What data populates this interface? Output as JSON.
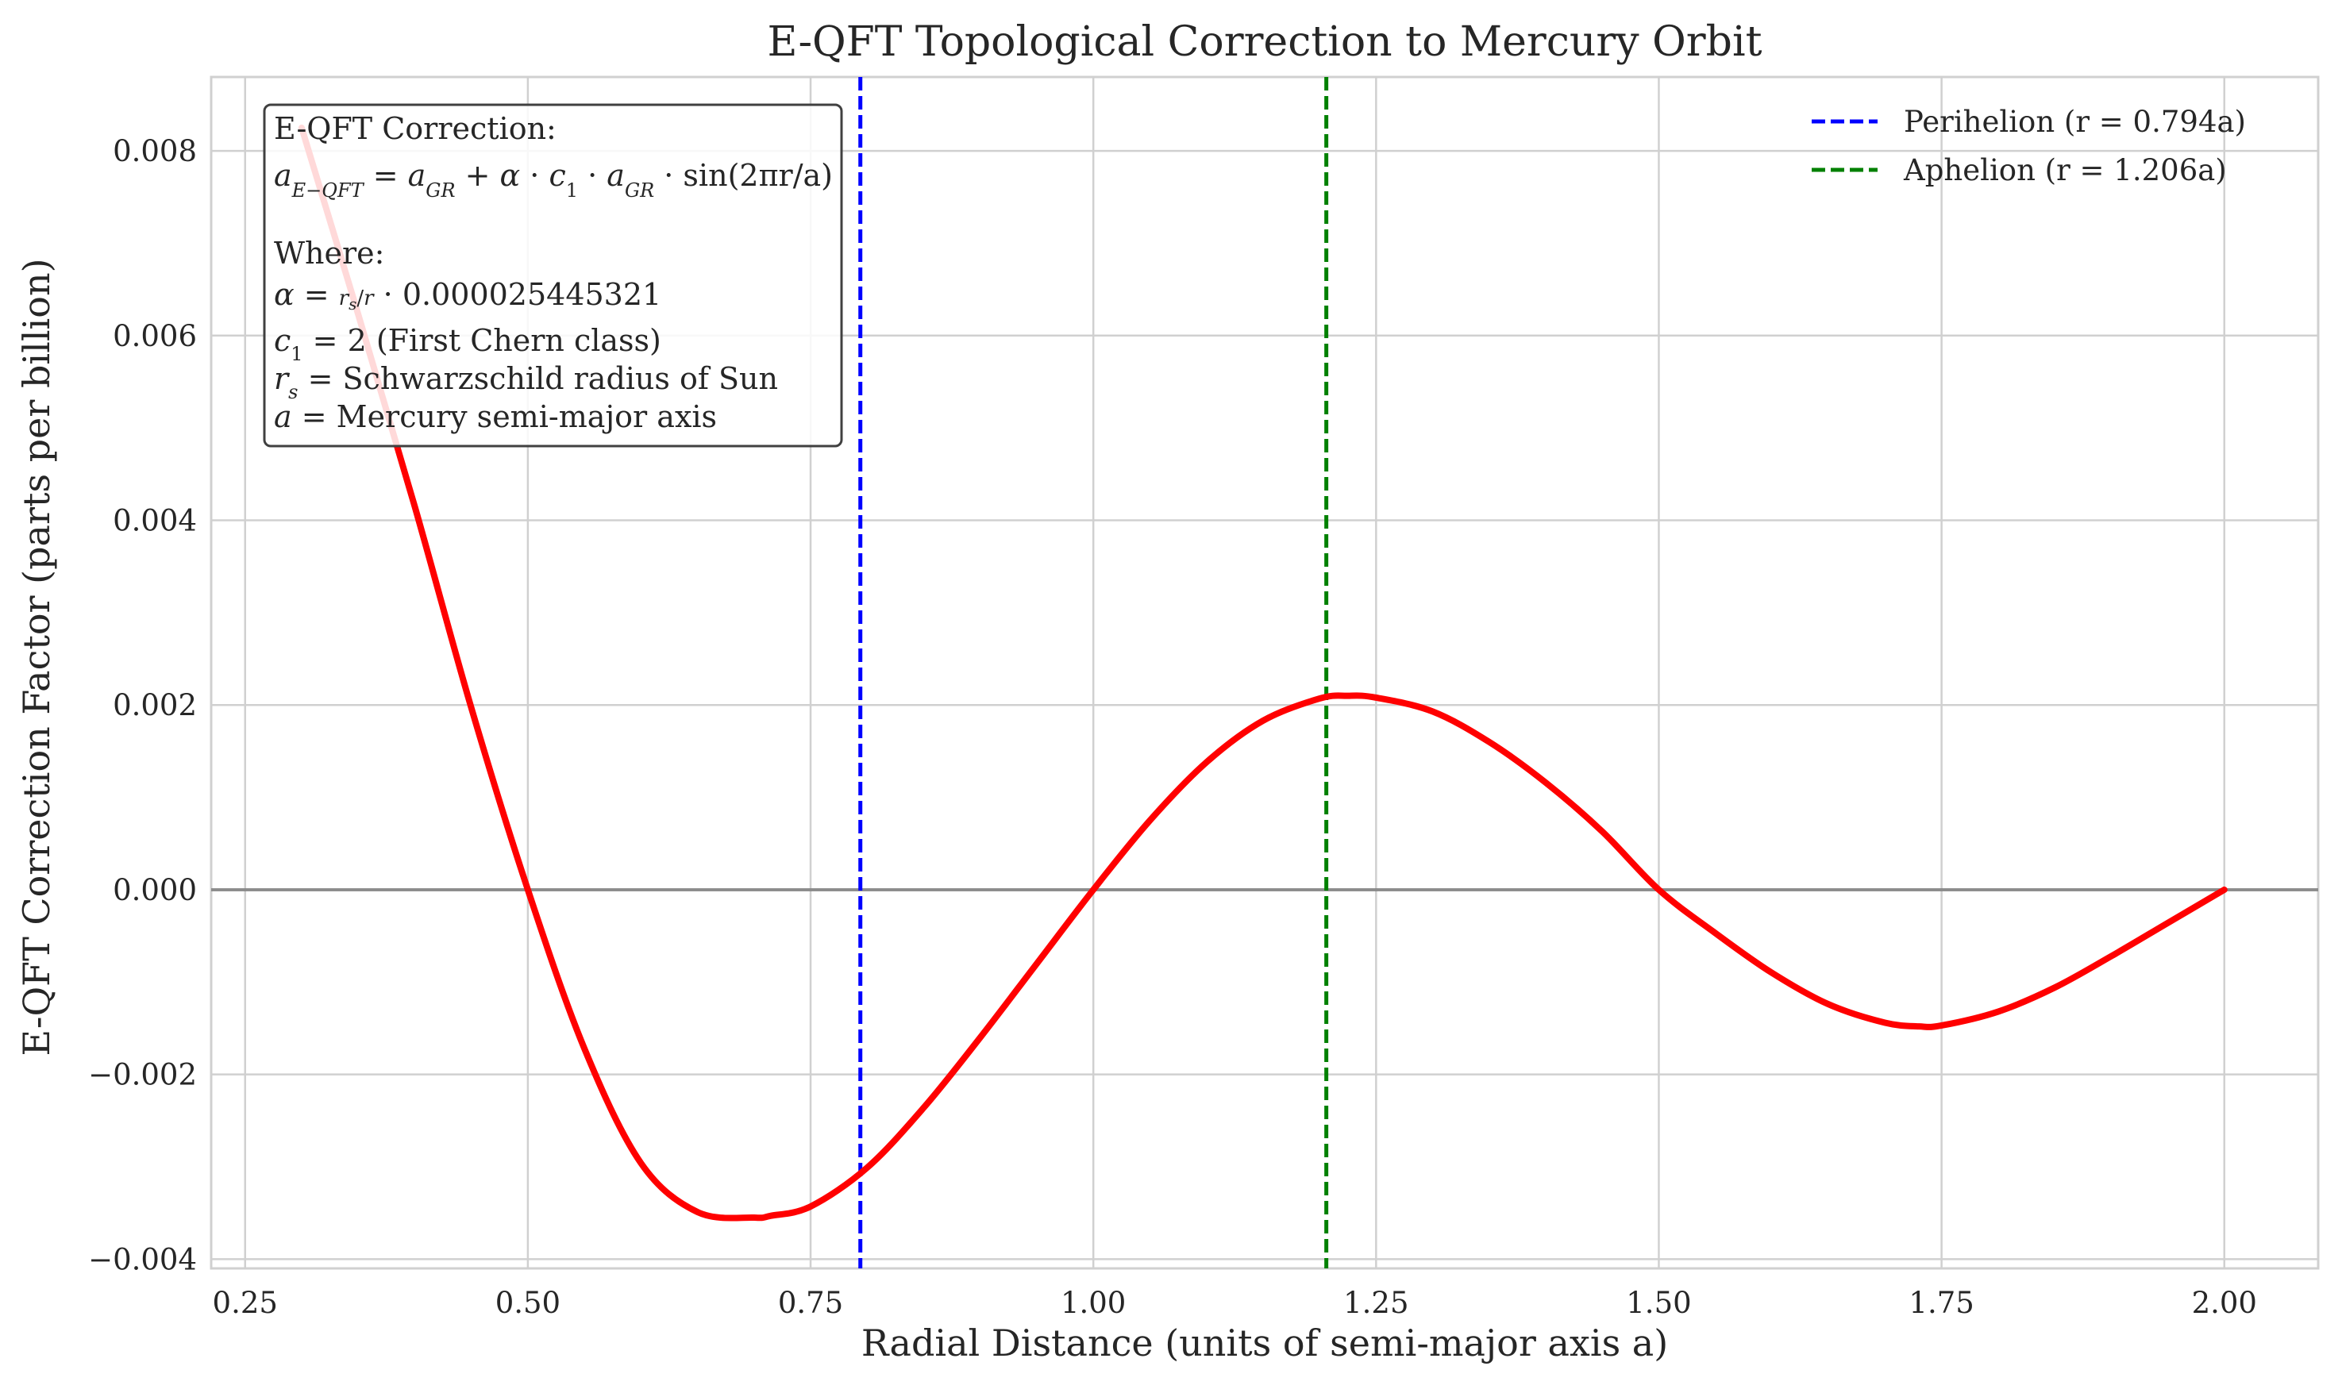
{
  "chart_data": {
    "type": "line",
    "title": "E-QFT Topological Correction to Mercury Orbit",
    "xlabel": "Radial Distance (units of semi-major axis a)",
    "ylabel": "E-QFT Correction Factor (parts per billion)",
    "xlim": [
      0.22,
      2.083
    ],
    "ylim": [
      -0.0041,
      0.0088
    ],
    "x_ticks": [
      "0.25",
      "0.50",
      "0.75",
      "1.00",
      "1.25",
      "1.50",
      "1.75",
      "2.00"
    ],
    "x_tick_values": [
      0.25,
      0.5,
      0.75,
      1.0,
      1.25,
      1.5,
      1.75,
      2.0
    ],
    "y_ticks": [
      "−0.004",
      "−0.002",
      "0.000",
      "0.002",
      "0.004",
      "0.006",
      "0.008"
    ],
    "y_tick_values": [
      -0.004,
      -0.002,
      0.0,
      0.002,
      0.004,
      0.006,
      0.008
    ],
    "grid": true,
    "legend_position": "top-right",
    "series": [
      {
        "color": "#ff0000",
        "x": [
          0.3,
          0.35,
          0.4,
          0.45,
          0.5,
          0.55,
          0.6,
          0.65,
          0.7,
          0.715,
          0.75,
          0.8,
          0.85,
          0.9,
          0.95,
          1.0,
          1.05,
          1.1,
          1.15,
          1.2,
          1.225,
          1.25,
          1.3,
          1.35,
          1.4,
          1.45,
          1.5,
          1.55,
          1.6,
          1.65,
          1.7,
          1.73,
          1.75,
          1.8,
          1.85,
          1.9,
          1.95,
          2.0
        ],
        "y": [
          0.00825,
          0.00623,
          0.00415,
          0.00197,
          0.0,
          -0.00172,
          -0.00296,
          -0.00349,
          -0.00355,
          -0.00353,
          -0.00343,
          -0.00301,
          -0.00236,
          -0.0016,
          -0.0008,
          0.0,
          0.00075,
          0.00138,
          0.00183,
          0.00207,
          0.0021,
          0.00208,
          0.00193,
          0.0016,
          0.00116,
          0.00063,
          0.0,
          -0.00047,
          -0.0009,
          -0.00124,
          -0.00144,
          -0.00148,
          -0.00147,
          -0.00132,
          -0.00106,
          -0.00072,
          -0.00036,
          0.0
        ]
      }
    ],
    "reference_lines": [
      {
        "label": "Perihelion (r = 0.794a)",
        "x": 0.794,
        "color": "#0000ff",
        "style": "dashed"
      },
      {
        "label": "Aphelion (r = 1.206a)",
        "x": 1.206,
        "color": "#008000",
        "style": "dashed"
      }
    ],
    "zero_line_color": "#808080"
  },
  "annotation": {
    "heading": "E-QFT Correction:",
    "where": "Where:",
    "alpha_value": "0.000025445321",
    "c1_text": "(First Chern class)",
    "rs_text": "Schwarzschild radius of Sun",
    "a_text": "Mercury semi-major axis"
  },
  "colors": {
    "grid": "#d0d0d0",
    "spine": "#d0d0d0",
    "curve_highlight": "#f6b3b3"
  }
}
